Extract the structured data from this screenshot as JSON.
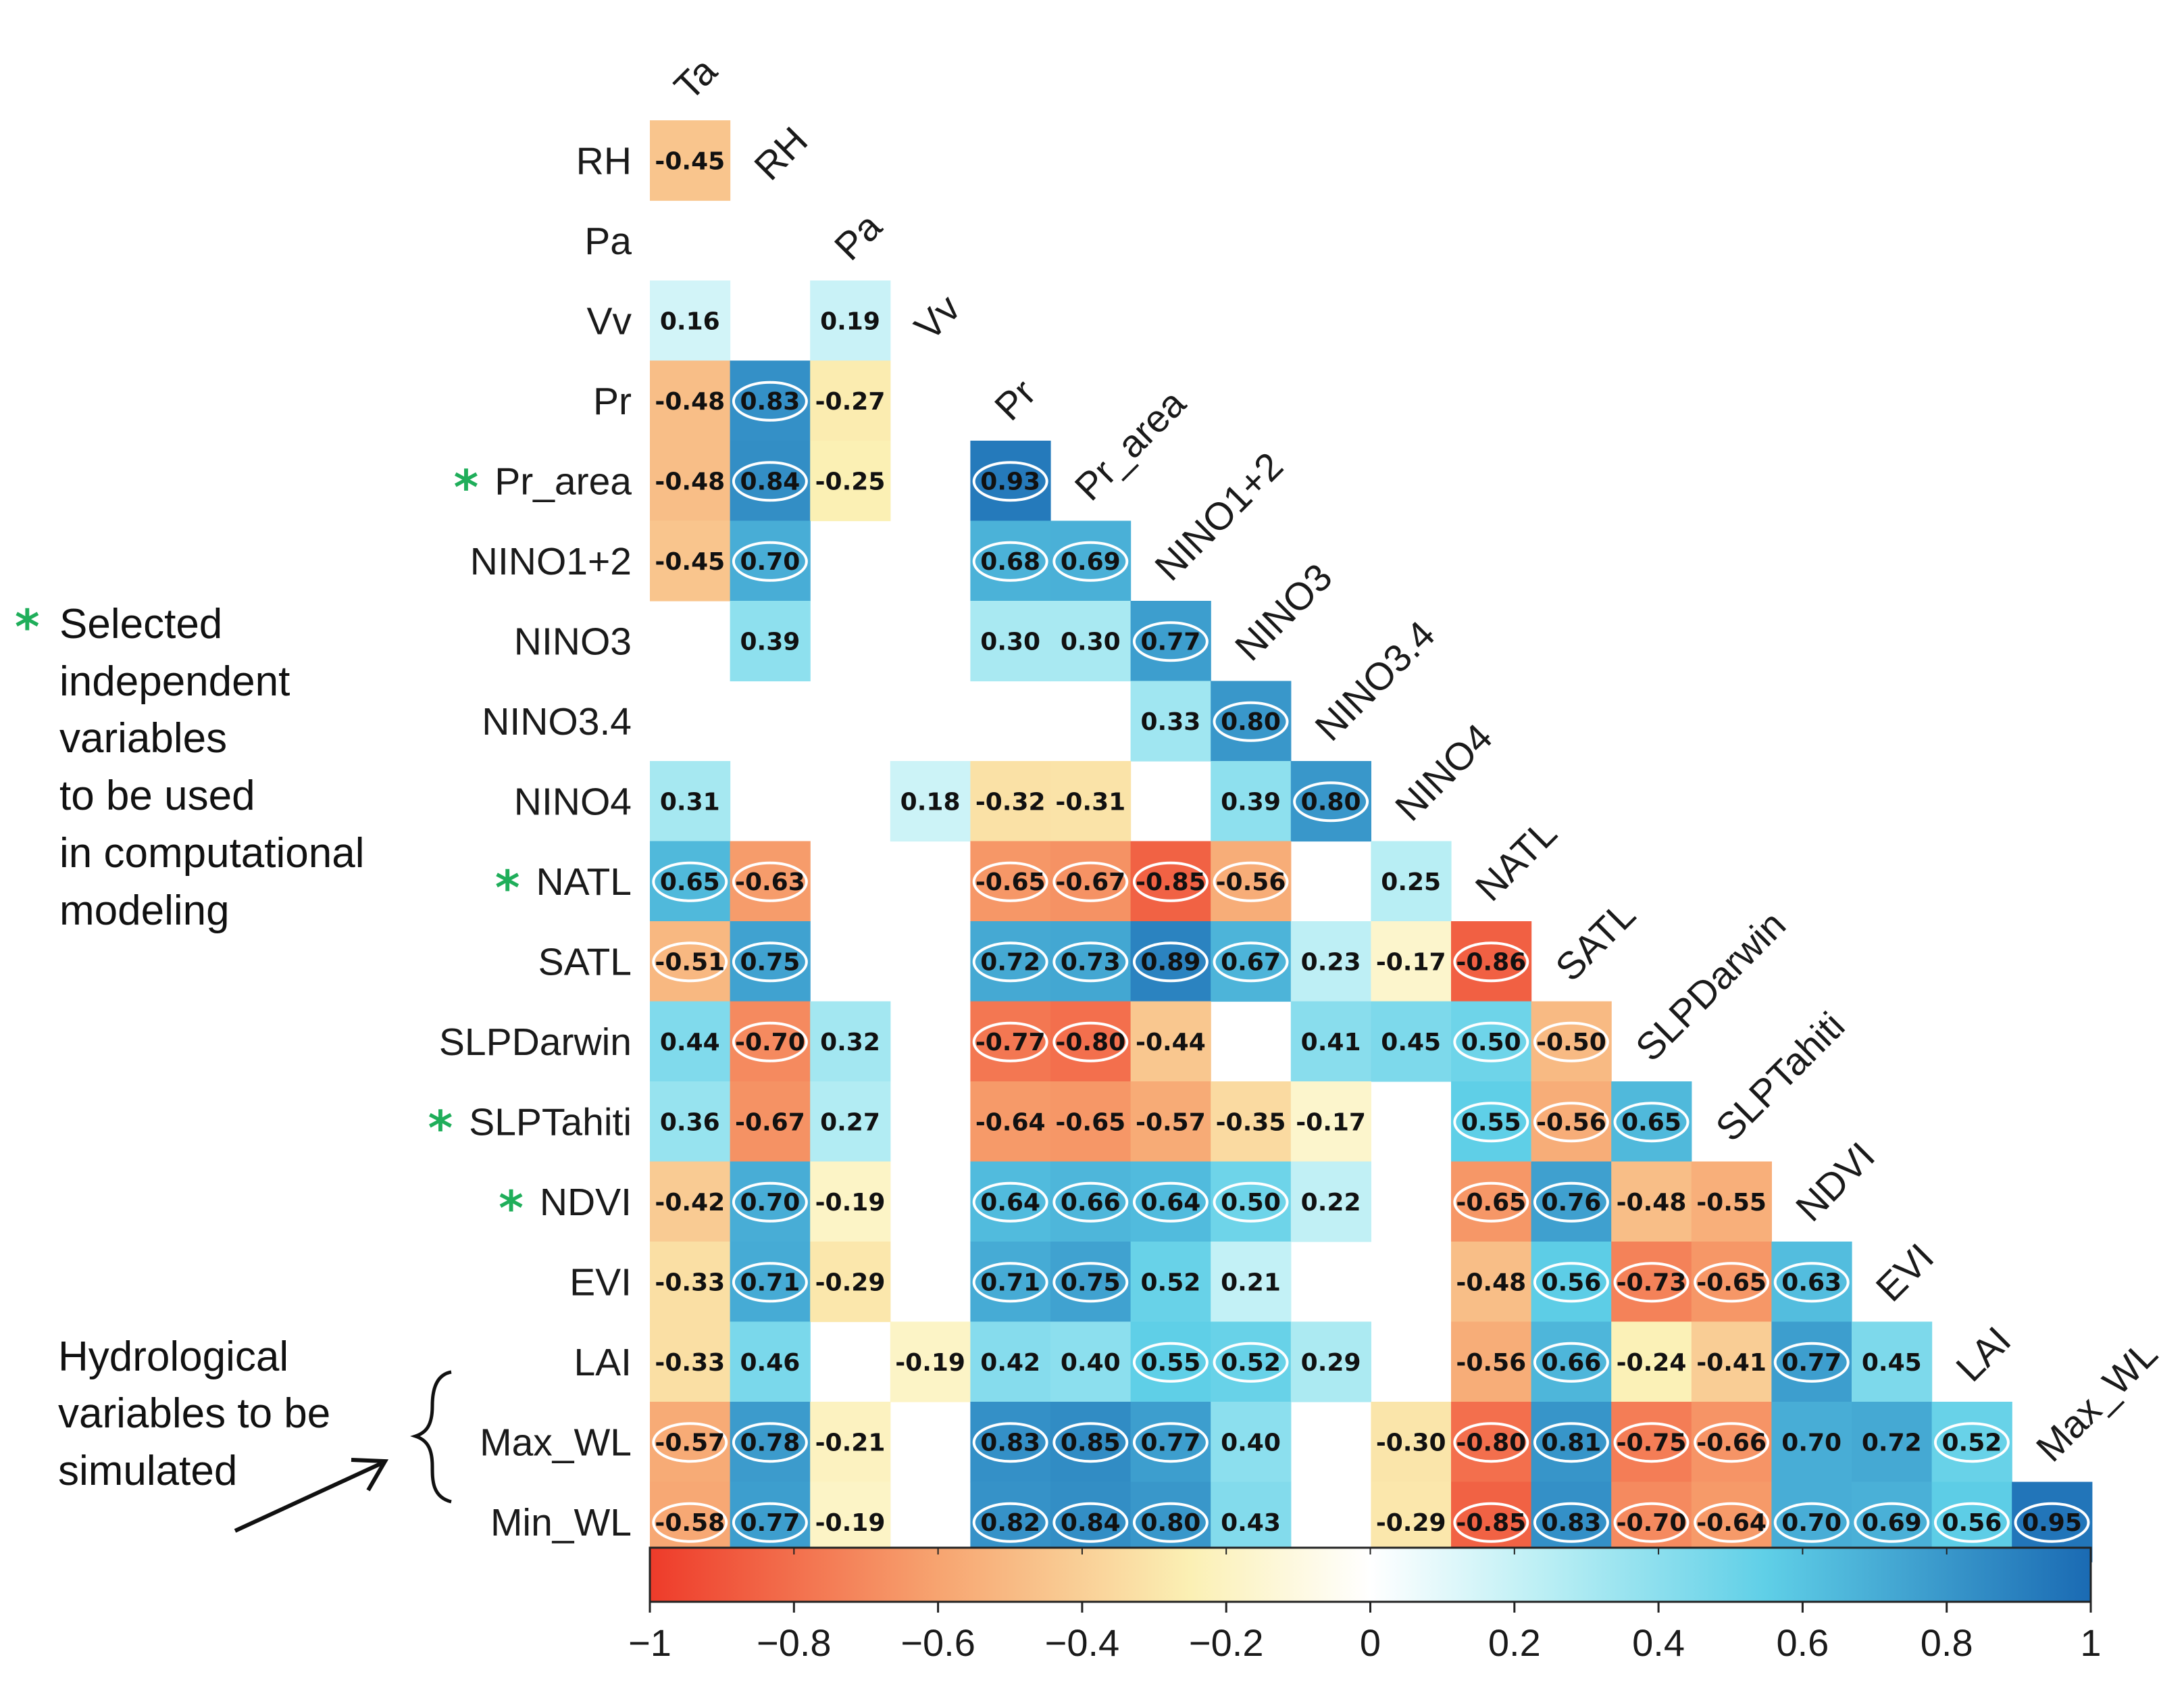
{
  "chart_data": {
    "type": "heatmap",
    "variables": [
      "Ta",
      "RH",
      "Pa",
      "Vv",
      "Pr",
      "Pr_area",
      "NINO1+2",
      "NINO3",
      "NINO3.4",
      "NINO4",
      "NATL",
      "SATL",
      "SLPDarwin",
      "SLPTahiti",
      "NDVI",
      "EVI",
      "LAI",
      "Max_WL",
      "Min_WL"
    ],
    "rows": [
      "RH",
      "Pa",
      "Vv",
      "Pr",
      "Pr_area",
      "NINO1+2",
      "NINO3",
      "NINO3.4",
      "NINO4",
      "NATL",
      "SATL",
      "SLPDarwin",
      "SLPTahiti",
      "NDVI",
      "EVI",
      "LAI",
      "Max_WL",
      "Min_WL"
    ],
    "columns": [
      "Ta",
      "RH",
      "Pa",
      "Vv",
      "Pr",
      "Pr_area",
      "NINO1+2",
      "NINO3",
      "NINO3.4",
      "NINO4",
      "NATL",
      "SATL",
      "SLPDarwin",
      "SLPTahiti",
      "NDVI",
      "EVI",
      "LAI",
      "Max_WL"
    ],
    "matrix": [
      [
        "-0.45"
      ],
      [
        null,
        null
      ],
      [
        "0.16",
        null,
        "0.19"
      ],
      [
        "-0.48",
        "0.83",
        "-0.27",
        null
      ],
      [
        "-0.48",
        "0.84",
        "-0.25",
        null,
        "0.93"
      ],
      [
        "-0.45",
        "0.70",
        null,
        null,
        "0.68",
        "0.69"
      ],
      [
        null,
        "0.39",
        null,
        null,
        "0.30",
        "0.30",
        "0.77"
      ],
      [
        null,
        null,
        null,
        null,
        null,
        null,
        "0.33",
        "0.80"
      ],
      [
        "0.31",
        null,
        null,
        "0.18",
        "-0.32",
        "-0.31",
        null,
        "0.39",
        "0.80"
      ],
      [
        "0.65",
        "-0.63",
        null,
        null,
        "-0.65",
        "-0.67",
        "-0.85",
        "-0.56",
        null,
        "0.25"
      ],
      [
        "-0.51",
        "0.75",
        null,
        null,
        "0.72",
        "0.73",
        "0.89",
        "0.67",
        "0.23",
        "-0.17",
        "-0.86"
      ],
      [
        "0.44",
        "-0.70",
        "0.32",
        null,
        "-0.77",
        "-0.80",
        "-0.44",
        null,
        "0.41",
        "0.45",
        "0.50",
        "-0.50"
      ],
      [
        "0.36",
        "-0.67",
        "0.27",
        null,
        "-0.64",
        "-0.65",
        "-0.57",
        "-0.35",
        "-0.17",
        null,
        "0.55",
        "-0.56",
        "0.65"
      ],
      [
        "-0.42",
        "0.70",
        "-0.19",
        null,
        "0.64",
        "0.66",
        "0.64",
        "0.50",
        "0.22",
        null,
        "-0.65",
        "0.76",
        "-0.48",
        "-0.55"
      ],
      [
        "-0.33",
        "0.71",
        "-0.29",
        null,
        "0.71",
        "0.75",
        "0.52",
        "0.21",
        null,
        null,
        "-0.48",
        "0.56",
        "-0.73",
        "-0.65",
        "0.63"
      ],
      [
        "-0.33",
        "0.46",
        null,
        "-0.19",
        "0.42",
        "0.40",
        "0.55",
        "0.52",
        "0.29",
        null,
        "-0.56",
        "0.66",
        "-0.24",
        "-0.41",
        "0.77",
        "0.45"
      ],
      [
        "-0.57",
        "0.78",
        "-0.21",
        null,
        "0.83",
        "0.85",
        "0.77",
        "0.40",
        null,
        "-0.30",
        "-0.80",
        "0.81",
        "-0.75",
        "-0.66",
        "0.70",
        "0.72",
        "0.52"
      ],
      [
        "-0.58",
        "0.77",
        "-0.19",
        null,
        "0.82",
        "0.84",
        "0.80",
        "0.43",
        null,
        "-0.29",
        "-0.85",
        "0.83",
        "-0.70",
        "-0.64",
        "0.70",
        "0.69",
        "0.56",
        "0.95"
      ]
    ],
    "circled": [
      [],
      [],
      [],
      [
        1
      ],
      [
        1,
        4
      ],
      [
        1,
        4,
        5
      ],
      [
        6
      ],
      [
        7
      ],
      [
        8
      ],
      [
        0,
        1,
        4,
        5,
        6,
        7
      ],
      [
        0,
        1,
        4,
        5,
        6,
        7,
        10
      ],
      [
        1,
        4,
        5,
        10,
        11
      ],
      [
        10,
        11,
        12
      ],
      [
        1,
        4,
        5,
        6,
        7,
        10,
        11
      ],
      [
        1,
        4,
        5,
        11,
        12,
        13,
        14
      ],
      [
        6,
        7,
        11,
        14
      ],
      [
        0,
        1,
        4,
        5,
        6,
        10,
        11,
        12,
        13,
        16
      ],
      [
        0,
        1,
        4,
        5,
        6,
        10,
        11,
        12,
        13,
        14,
        15,
        16,
        17
      ]
    ],
    "colorbar": {
      "range": [
        -1,
        1
      ],
      "ticks": [
        "−1",
        "−0.8",
        "−0.6",
        "−0.4",
        "−0.2",
        "0",
        "0.2",
        "0.4",
        "0.6",
        "0.8",
        "1"
      ]
    },
    "starred_rows": [
      "Pr_area",
      "NATL",
      "SLPTahiti",
      "NDVI"
    ],
    "colors": {
      "neg_strong": "#ee3b2a",
      "neg_mid": "#f7a470",
      "neg_weak": "#fbf0b4",
      "zero": "#ffffff",
      "pos_weak": "#b8eef4",
      "pos_mid": "#5fcfe7",
      "pos_strong": "#1a6ab3",
      "star": "#1fae5a"
    }
  },
  "annotations": {
    "legend_star": "*",
    "legend_lines": [
      "Selected",
      "independent",
      "variables",
      "to be used",
      "in computational",
      "modeling"
    ],
    "hydro_lines": [
      "Hydrological",
      "variables to be",
      "simulated"
    ]
  }
}
